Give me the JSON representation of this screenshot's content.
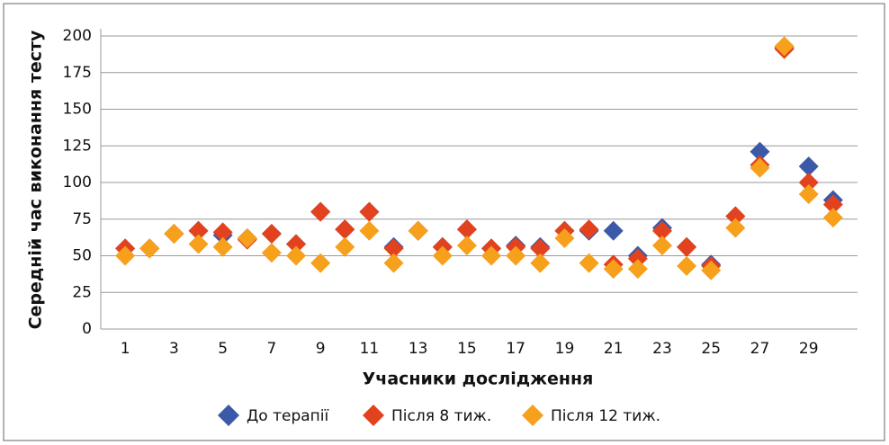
{
  "chart_data": {
    "type": "scatter",
    "y_label": "Середній час виконання тесту",
    "x_label": "Учасники дослідження",
    "x": [
      1,
      2,
      3,
      4,
      5,
      6,
      7,
      8,
      9,
      10,
      11,
      12,
      13,
      14,
      15,
      16,
      17,
      18,
      19,
      20,
      21,
      22,
      23,
      24,
      25,
      26,
      27,
      28,
      29,
      30
    ],
    "xlim": [
      0,
      31
    ],
    "xticks": [
      1,
      3,
      5,
      7,
      9,
      11,
      13,
      15,
      17,
      19,
      21,
      23,
      25,
      27,
      29
    ],
    "ylim": [
      0,
      200
    ],
    "yticks": [
      0,
      25,
      50,
      75,
      100,
      125,
      150,
      175,
      200
    ],
    "grid": true,
    "legend": "bottom",
    "series": [
      {
        "name": "До терапії",
        "color": "#3b59a8",
        "values": [
          55,
          55,
          65,
          67,
          64,
          62,
          65,
          58,
          80,
          68,
          80,
          56,
          67,
          56,
          68,
          55,
          57,
          56,
          67,
          67,
          67,
          50,
          69,
          56,
          44,
          77,
          121,
          192,
          111,
          88
        ]
      },
      {
        "name": "Після 8 тиж.",
        "color": "#e2421d",
        "values": [
          55,
          55,
          65,
          67,
          66,
          61,
          65,
          58,
          80,
          68,
          80,
          55,
          67,
          56,
          68,
          55,
          56,
          55,
          67,
          68,
          44,
          48,
          67,
          56,
          43,
          77,
          112,
          191,
          100,
          85
        ]
      },
      {
        "name": "Після 12 тиж.",
        "color": "#f6a01c",
        "values": [
          50,
          55,
          65,
          58,
          56,
          62,
          52,
          50,
          45,
          56,
          67,
          45,
          67,
          50,
          57,
          50,
          50,
          45,
          62,
          45,
          41,
          41,
          57,
          43,
          40,
          69,
          110,
          193,
          92,
          76
        ]
      }
    ]
  }
}
